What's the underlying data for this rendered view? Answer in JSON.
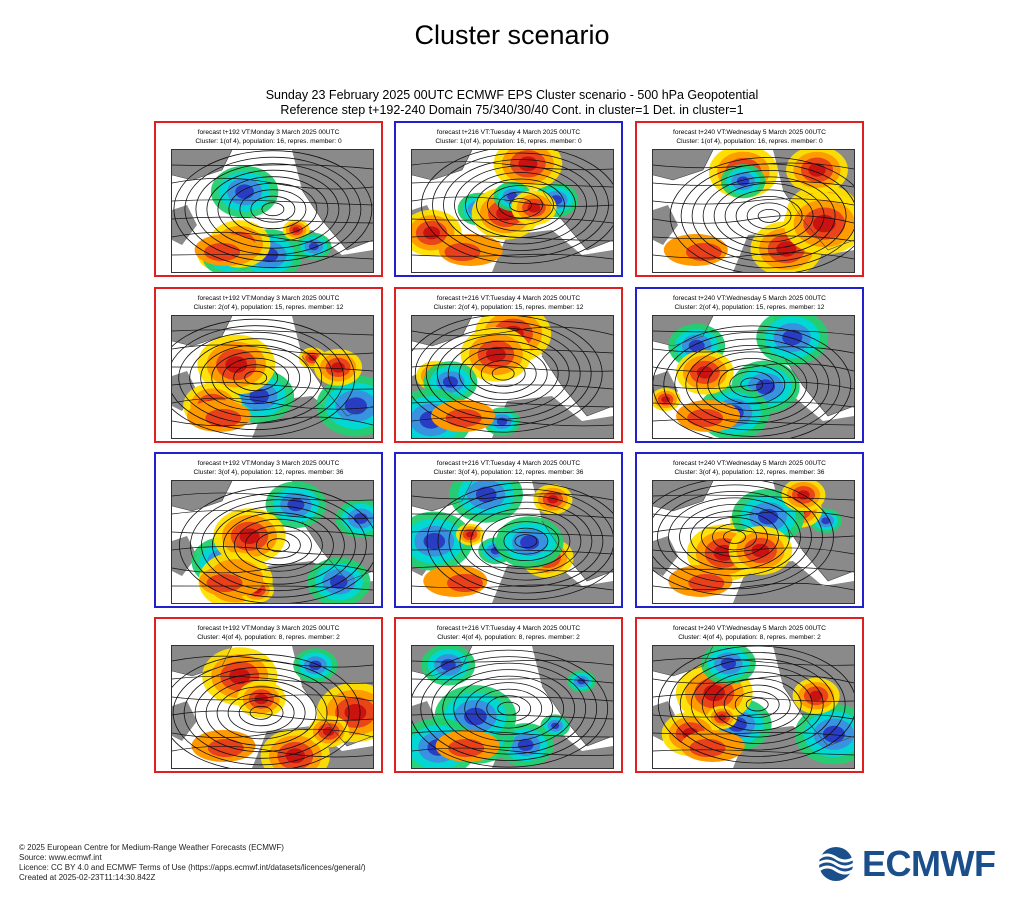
{
  "page": {
    "title": "Cluster scenario",
    "header_line1": "Sunday 23 February 2025 00UTC ECMWF EPS Cluster scenario - 500 hPa Geopotential",
    "header_line2": "Reference step t+192-240 Domain 75/340/30/40 Cont. in cluster=1 Det. in cluster=1"
  },
  "colors": {
    "red_border": "#e02020",
    "blue_border": "#2020d0",
    "positive_anomaly": [
      "#ffe000",
      "#ff9900",
      "#e8401a",
      "#c81010"
    ],
    "negative_anomaly": [
      "#20d070",
      "#00d8d8",
      "#3a8fe0",
      "#2838c0"
    ],
    "land": "#8a8a8a",
    "brand": "#1a4f8c"
  },
  "panels": [
    {
      "line1": "forecast t+192 VT:Monday 3 March 2025 00UTC",
      "line2": "Cluster: 1(of 4), population: 16, repres. member: 0",
      "border": "red"
    },
    {
      "line1": "forecast t+216 VT:Tuesday 4 March 2025 00UTC",
      "line2": "Cluster: 1(of 4), population: 16, repres. member: 0",
      "border": "blue"
    },
    {
      "line1": "forecast t+240 VT:Wednesday 5 March 2025 00UTC",
      "line2": "Cluster: 1(of 4), population: 16, repres. member: 0",
      "border": "red"
    },
    {
      "line1": "forecast t+192 VT:Monday 3 March 2025 00UTC",
      "line2": "Cluster: 2(of 4), population: 15, repres. member: 12",
      "border": "red"
    },
    {
      "line1": "forecast t+216 VT:Tuesday 4 March 2025 00UTC",
      "line2": "Cluster: 2(of 4), population: 15, repres. member: 12",
      "border": "red"
    },
    {
      "line1": "forecast t+240 VT:Wednesday 5 March 2025 00UTC",
      "line2": "Cluster: 2(of 4), population: 15, repres. member: 12",
      "border": "blue"
    },
    {
      "line1": "forecast t+192 VT:Monday 3 March 2025 00UTC",
      "line2": "Cluster: 3(of 4), population: 12, repres. member: 36",
      "border": "blue"
    },
    {
      "line1": "forecast t+216 VT:Tuesday 4 March 2025 00UTC",
      "line2": "Cluster: 3(of 4), population: 12, repres. member: 36",
      "border": "blue"
    },
    {
      "line1": "forecast t+240 VT:Wednesday 5 March 2025 00UTC",
      "line2": "Cluster: 3(of 4), population: 12, repres. member: 36",
      "border": "blue"
    },
    {
      "line1": "forecast t+192 VT:Monday 3 March 2025 00UTC",
      "line2": "Cluster: 4(of 4), population: 8, repres. member: 2",
      "border": "red"
    },
    {
      "line1": "forecast t+216 VT:Tuesday 4 March 2025 00UTC",
      "line2": "Cluster: 4(of 4), population: 8, repres. member: 2",
      "border": "red"
    },
    {
      "line1": "forecast t+240 VT:Wednesday 5 March 2025 00UTC",
      "line2": "Cluster: 4(of 4), population: 8, repres. member: 2",
      "border": "red"
    }
  ],
  "footer": {
    "copyright": "© 2025 European Centre for Medium-Range Weather Forecasts (ECMWF)",
    "source": "Source: www.ecmwf.int",
    "licence": "Licence: CC BY 4.0 and ECMWF Terms of Use (https://apps.ecmwf.int/datasets/licences/general/)",
    "created": "Created at 2025-02-23T11:14:30.842Z"
  },
  "logo": {
    "text": "ECMWF",
    "icon": "ecmwf-waves-icon"
  }
}
